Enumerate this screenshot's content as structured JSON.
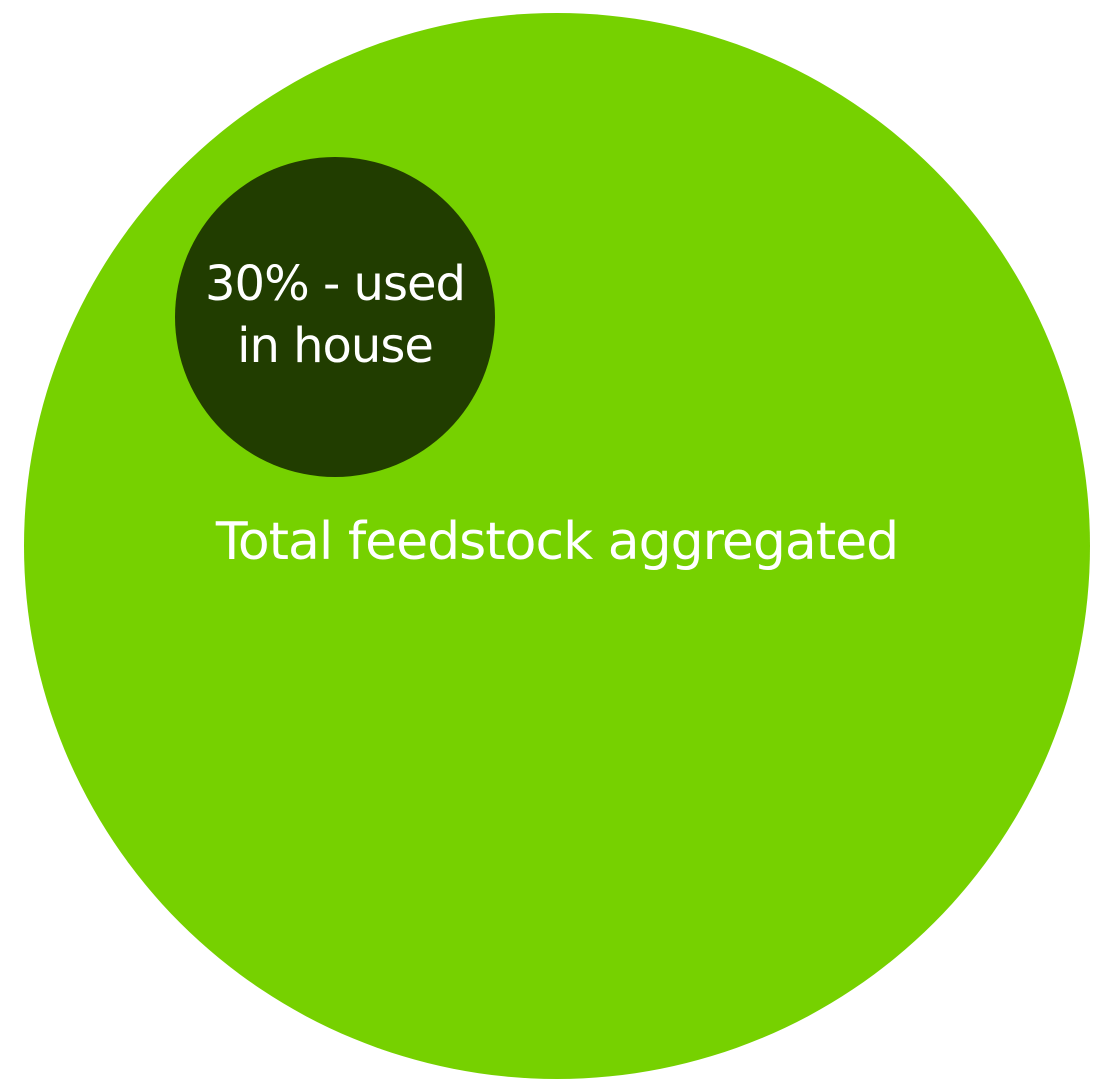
{
  "diagram": {
    "outer": {
      "label": "Total feedstock aggregated",
      "color": "#76d100"
    },
    "inner": {
      "label": "30% - used in house",
      "value_percent": 30,
      "color": "#213d00"
    },
    "label_color": "#ffffff"
  }
}
